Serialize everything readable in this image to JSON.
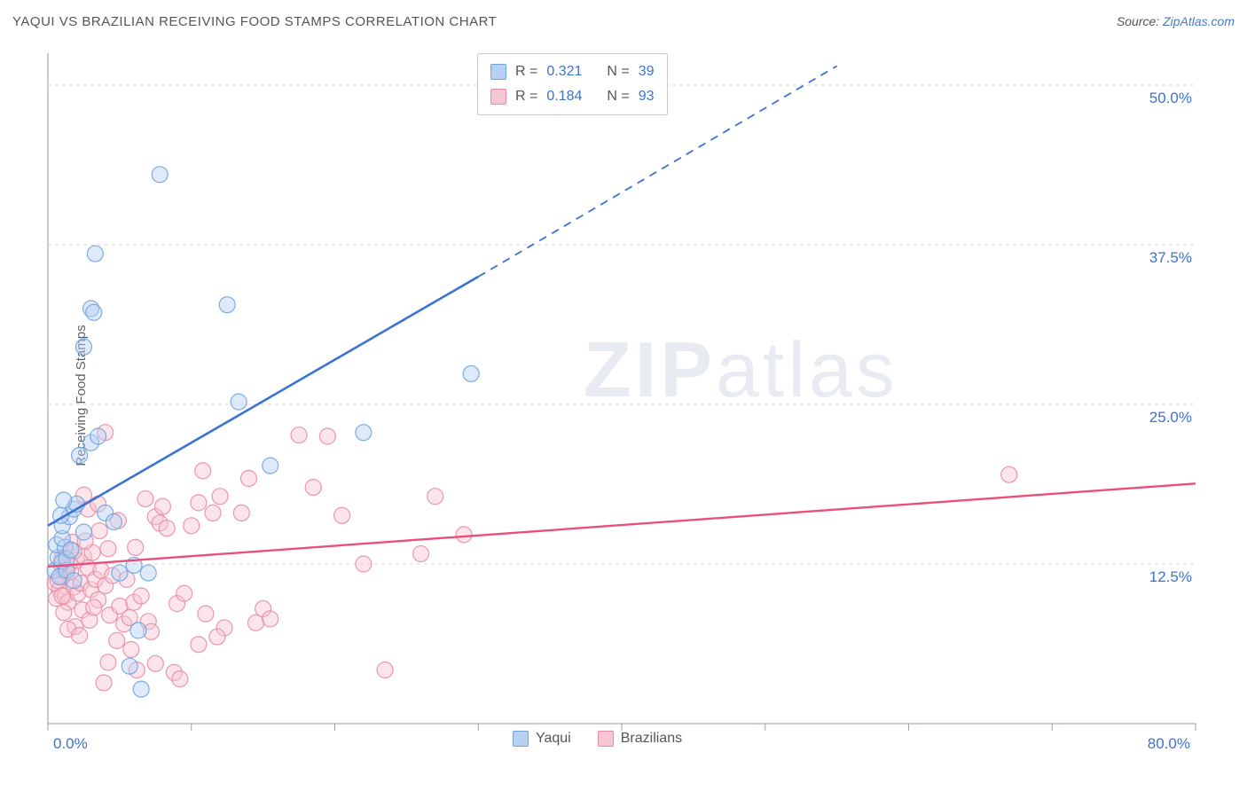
{
  "header": {
    "title": "YAQUI VS BRAZILIAN RECEIVING FOOD STAMPS CORRELATION CHART",
    "source_prefix": "Source: ",
    "source_link": "ZipAtlas.com"
  },
  "ylabel": "Receiving Food Stamps",
  "watermark": {
    "bold": "ZIP",
    "rest": "atlas"
  },
  "chart": {
    "type": "scatter",
    "xlim": [
      0,
      80
    ],
    "ylim": [
      0,
      52.5
    ],
    "x_origin_label": "0.0%",
    "x_max_label": "80.0%",
    "y_gridlines": [
      12.5,
      25.0,
      37.5,
      50.0
    ],
    "y_grid_labels": [
      "12.5%",
      "25.0%",
      "37.5%",
      "50.0%"
    ],
    "x_ticks": [
      0,
      10,
      20,
      30,
      40,
      50,
      60,
      70,
      80
    ],
    "marker_radius": 9,
    "marker_opacity": 0.45,
    "grid_color": "#d5d7da",
    "axis_color": "#b5b9be",
    "background_color": "#ffffff",
    "series": [
      {
        "name": "Yaqui",
        "legend_label": "Yaqui",
        "fill": "#b6d1f1",
        "stroke": "#6fa3de",
        "line_color": "#3b72d4",
        "corr_r": "0.321",
        "corr_n": "39",
        "trend": {
          "x1": 0,
          "y1": 15.5,
          "x2_solid": 30,
          "y2_solid": 35,
          "x2_dash": 55,
          "y2_dash": 51.5
        },
        "points": [
          [
            0.5,
            12
          ],
          [
            0.7,
            13
          ],
          [
            0.8,
            11.5
          ],
          [
            0.6,
            14
          ],
          [
            1,
            12.7
          ],
          [
            1.2,
            13.8
          ],
          [
            1,
            14.5
          ],
          [
            1.3,
            12
          ],
          [
            1,
            15.5
          ],
          [
            1.5,
            16.2
          ],
          [
            1.8,
            16.8
          ],
          [
            2,
            17.2
          ],
          [
            2.5,
            15
          ],
          [
            2.2,
            21
          ],
          [
            3,
            22
          ],
          [
            3.5,
            22.5
          ],
          [
            4,
            16.5
          ],
          [
            4.6,
            15.8
          ],
          [
            5,
            11.8
          ],
          [
            6,
            12.4
          ],
          [
            7,
            11.8
          ],
          [
            2.5,
            29.5
          ],
          [
            3,
            32.5
          ],
          [
            3.2,
            32.2
          ],
          [
            3.3,
            36.8
          ],
          [
            7.8,
            43
          ],
          [
            12.5,
            32.8
          ],
          [
            13.3,
            25.2
          ],
          [
            15.5,
            20.2
          ],
          [
            22,
            22.8
          ],
          [
            29.5,
            27.4
          ],
          [
            6.5,
            2.7
          ],
          [
            6.3,
            7.3
          ],
          [
            5.7,
            4.5
          ],
          [
            1.8,
            11.2
          ],
          [
            1.3,
            12.9
          ],
          [
            1.6,
            13.6
          ],
          [
            0.9,
            16.3
          ],
          [
            1.1,
            17.5
          ]
        ]
      },
      {
        "name": "Brazilians",
        "legend_label": "Brazilians",
        "fill": "#f7c6d3",
        "stroke": "#e98ba6",
        "line_color": "#e94f7a",
        "corr_r": "0.184",
        "corr_n": "93",
        "trend": {
          "x1": 0,
          "y1": 12.3,
          "x2_solid": 80,
          "y2_solid": 18.8
        },
        "points": [
          [
            0.5,
            11
          ],
          [
            0.8,
            10.5
          ],
          [
            0.6,
            9.8
          ],
          [
            1,
            11.5
          ],
          [
            1.1,
            12
          ],
          [
            1.2,
            10
          ],
          [
            1,
            13
          ],
          [
            1.3,
            11.8
          ],
          [
            1.5,
            12.5
          ],
          [
            1.4,
            9.5
          ],
          [
            1.8,
            10.7
          ],
          [
            1.6,
            11.9
          ],
          [
            2,
            12.8
          ],
          [
            2.1,
            10.2
          ],
          [
            2.3,
            11
          ],
          [
            2.5,
            13.1
          ],
          [
            2.4,
            8.9
          ],
          [
            2.8,
            12.2
          ],
          [
            3,
            10.5
          ],
          [
            3.1,
            13.4
          ],
          [
            3.3,
            11.3
          ],
          [
            3.5,
            9.7
          ],
          [
            3.7,
            12
          ],
          [
            4,
            10.8
          ],
          [
            4.2,
            13.7
          ],
          [
            4.5,
            11.6
          ],
          [
            4.3,
            8.5
          ],
          [
            5,
            9.2
          ],
          [
            5.3,
            7.8
          ],
          [
            5.7,
            8.3
          ],
          [
            6,
            9.5
          ],
          [
            6.5,
            10
          ],
          [
            7,
            8
          ],
          [
            7.2,
            7.2
          ],
          [
            7.5,
            16.2
          ],
          [
            7.8,
            15.7
          ],
          [
            8,
            17
          ],
          [
            8.3,
            15.3
          ],
          [
            9,
            9.4
          ],
          [
            9.5,
            10.2
          ],
          [
            10,
            15.5
          ],
          [
            10.5,
            17.3
          ],
          [
            10.8,
            19.8
          ],
          [
            11,
            8.6
          ],
          [
            11.5,
            16.5
          ],
          [
            12,
            17.8
          ],
          [
            12.3,
            7.5
          ],
          [
            13.5,
            16.5
          ],
          [
            14,
            19.2
          ],
          [
            14.5,
            7.9
          ],
          [
            15,
            9
          ],
          [
            15.5,
            8.2
          ],
          [
            17.5,
            22.6
          ],
          [
            18.5,
            18.5
          ],
          [
            19.5,
            22.5
          ],
          [
            20.5,
            16.3
          ],
          [
            22,
            12.5
          ],
          [
            23.5,
            4.2
          ],
          [
            26,
            13.3
          ],
          [
            27,
            17.8
          ],
          [
            29,
            14.8
          ],
          [
            4,
            22.8
          ],
          [
            2.8,
            16.8
          ],
          [
            2.5,
            17.9
          ],
          [
            3.5,
            17.2
          ],
          [
            4.8,
            6.5
          ],
          [
            5.8,
            5.8
          ],
          [
            6.2,
            4.2
          ],
          [
            7.5,
            4.7
          ],
          [
            8.8,
            4
          ],
          [
            9.2,
            3.5
          ],
          [
            10.5,
            6.2
          ],
          [
            11.8,
            6.8
          ],
          [
            4.2,
            4.8
          ],
          [
            3.9,
            3.2
          ],
          [
            2.9,
            8.1
          ],
          [
            1.9,
            7.6
          ],
          [
            1.7,
            14.2
          ],
          [
            3.6,
            15.1
          ],
          [
            4.9,
            15.9
          ],
          [
            6.1,
            13.8
          ],
          [
            6.8,
            17.6
          ],
          [
            1.1,
            8.7
          ],
          [
            1.4,
            7.4
          ],
          [
            2.2,
            6.9
          ],
          [
            67,
            19.5
          ],
          [
            0.9,
            12.5
          ],
          [
            0.7,
            11.2
          ],
          [
            1.0,
            10.0
          ],
          [
            1.8,
            13.5
          ],
          [
            2.6,
            14.3
          ],
          [
            3.2,
            9.1
          ],
          [
            5.5,
            11.3
          ]
        ]
      }
    ]
  },
  "corr_box": {
    "r_label": "R =",
    "n_label": "N ="
  },
  "bottom_legend": {
    "items": [
      {
        "swatch_fill": "#b6d1f1",
        "swatch_stroke": "#6fa3de",
        "label": "Yaqui"
      },
      {
        "swatch_fill": "#f7c6d3",
        "swatch_stroke": "#e98ba6",
        "label": "Brazilians"
      }
    ]
  }
}
